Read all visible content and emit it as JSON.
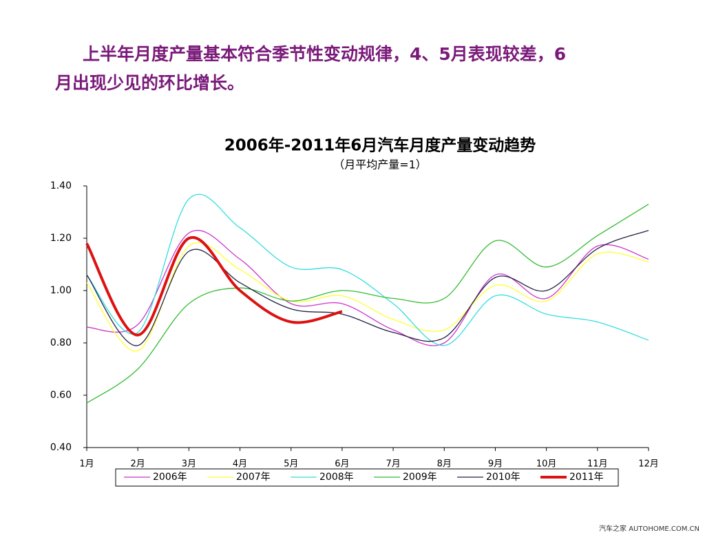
{
  "heading": {
    "lines": [
      "上半年月度产量基本符合季节性变动规律，4、5月表现较差，6",
      "月出现少见的环比增长。"
    ]
  },
  "chart_data": {
    "type": "line",
    "title": "2006年-2011年6月汽车月度产量变动趋势",
    "subtitle": "（月平均产量=1）",
    "categories": [
      "1月",
      "2月",
      "3月",
      "4月",
      "5月",
      "6月",
      "7月",
      "8月",
      "9月",
      "10月",
      "11月",
      "12月"
    ],
    "ylim": [
      0.4,
      1.4
    ],
    "yticks": [
      {
        "value": 0.4,
        "label": "0.40"
      },
      {
        "value": 0.6,
        "label": "0.60"
      },
      {
        "value": 0.8,
        "label": "0.80"
      },
      {
        "value": 1.0,
        "label": "1.00"
      },
      {
        "value": 1.2,
        "label": "1.20"
      },
      {
        "value": 1.4,
        "label": "1.40"
      }
    ],
    "legend": "bottom",
    "series": [
      {
        "name": "2006年",
        "color": "#cc33cc",
        "width": 1.3,
        "values": [
          0.86,
          0.87,
          1.22,
          1.12,
          0.95,
          0.95,
          0.85,
          0.8,
          1.06,
          0.97,
          1.17,
          1.12
        ]
      },
      {
        "name": "2007年",
        "color": "#ffff33",
        "width": 1.3,
        "values": [
          1.03,
          0.77,
          1.17,
          1.08,
          0.96,
          0.98,
          0.89,
          0.85,
          1.02,
          0.96,
          1.14,
          1.11
        ]
      },
      {
        "name": "2008年",
        "color": "#33dddd",
        "width": 1.3,
        "values": [
          1.06,
          0.84,
          1.35,
          1.24,
          1.09,
          1.08,
          0.95,
          0.79,
          0.98,
          0.91,
          0.88,
          0.81
        ]
      },
      {
        "name": "2009年",
        "color": "#33bb33",
        "width": 1.3,
        "values": [
          0.57,
          0.7,
          0.95,
          1.01,
          0.96,
          1.0,
          0.97,
          0.97,
          1.19,
          1.09,
          1.21,
          1.33
        ]
      },
      {
        "name": "2010年",
        "color": "#222244",
        "width": 1.3,
        "values": [
          1.06,
          0.79,
          1.15,
          1.03,
          0.93,
          0.91,
          0.84,
          0.82,
          1.05,
          1.0,
          1.16,
          1.23
        ]
      },
      {
        "name": "2011年",
        "color": "#dd1111",
        "width": 4,
        "values": [
          1.18,
          0.83,
          1.2,
          1.0,
          0.88,
          0.92,
          null,
          null,
          null,
          null,
          null,
          null
        ]
      }
    ]
  },
  "watermark": "汽车之家 AUTOHOME.COM.CN"
}
